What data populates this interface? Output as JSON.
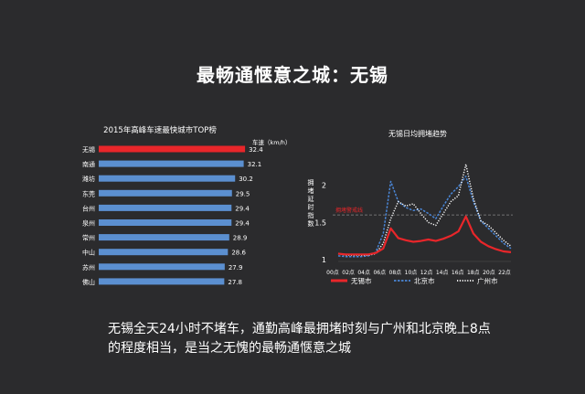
{
  "page": {
    "title": "最畅通惬意之城：无锡",
    "caption": "无锡全天24小时不堵车，通勤高峰最拥堵时刻与广州和北京晚上8点的程度相当，是当之无愧的最畅通惬意之城"
  },
  "colors": {
    "background": "#2b2b2d",
    "highlight_bar": "#e8262a",
    "bar": "#5b8fd0",
    "wuxi_line": "#e8262a",
    "beijing_line": "#4a86d6",
    "guangzhou_line": "#ffffff",
    "threshold_line": "#888888",
    "threshold_label": "#e8262a"
  },
  "chart_data": [
    {
      "type": "bar",
      "orientation": "horizontal",
      "title": "2015年高峰车速最快城市TOP榜",
      "value_header": "车速（km/h）",
      "categories": [
        "无锡",
        "南通",
        "潍坊",
        "东莞",
        "台州",
        "泉州",
        "常州",
        "中山",
        "苏州",
        "佛山"
      ],
      "values": [
        32.4,
        32.1,
        30.2,
        29.5,
        29.4,
        29.4,
        28.9,
        28.6,
        27.9,
        27.8
      ],
      "highlight_index": 0,
      "xlim": [
        0,
        34
      ],
      "grid": false
    },
    {
      "type": "line",
      "title": "无锡日均拥堵趋势",
      "ylabel": "拥堵延时指数",
      "ylim": [
        1,
        2.4
      ],
      "y_ticks": [
        1,
        1.5,
        2
      ],
      "x_ticks": [
        "00点",
        "02点",
        "04点",
        "06点",
        "08点",
        "10点",
        "12点",
        "14点",
        "16点",
        "18点",
        "20点",
        "22点"
      ],
      "x_hours": [
        0,
        1,
        2,
        3,
        4,
        5,
        6,
        7,
        8,
        9,
        10,
        11,
        12,
        13,
        14,
        15,
        16,
        17,
        18,
        19,
        20,
        21,
        22,
        23
      ],
      "threshold": {
        "value": 1.6,
        "label": "拥堵警戒线"
      },
      "legend": "bottom",
      "series": [
        {
          "name": "无锡市",
          "style": "solid",
          "values": [
            1.08,
            1.07,
            1.07,
            1.07,
            1.07,
            1.09,
            1.15,
            1.42,
            1.29,
            1.26,
            1.24,
            1.25,
            1.27,
            1.25,
            1.28,
            1.32,
            1.38,
            1.58,
            1.35,
            1.24,
            1.18,
            1.14,
            1.11,
            1.1
          ]
        },
        {
          "name": "北京市",
          "style": "dashed",
          "values": [
            1.05,
            1.04,
            1.04,
            1.04,
            1.05,
            1.1,
            1.35,
            2.05,
            1.78,
            1.7,
            1.66,
            1.68,
            1.62,
            1.55,
            1.72,
            1.88,
            1.98,
            2.12,
            1.78,
            1.52,
            1.42,
            1.32,
            1.22,
            1.15
          ]
        },
        {
          "name": "广州市",
          "style": "dotted",
          "values": [
            1.08,
            1.06,
            1.06,
            1.06,
            1.06,
            1.08,
            1.22,
            1.55,
            1.78,
            1.72,
            1.75,
            1.62,
            1.5,
            1.46,
            1.62,
            1.78,
            1.86,
            2.28,
            1.82,
            1.52,
            1.46,
            1.36,
            1.26,
            1.18
          ]
        }
      ]
    }
  ]
}
